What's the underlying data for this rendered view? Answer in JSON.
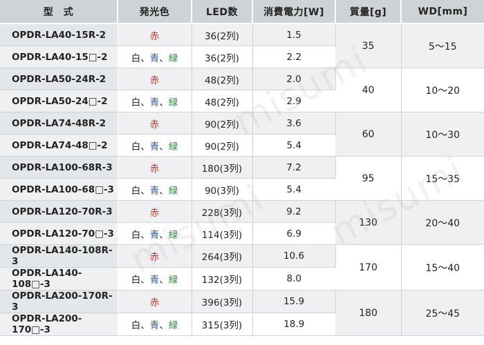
{
  "headers": {
    "model": "型　式",
    "color": "発光色",
    "led": "LED数",
    "power": "消費電力[W]",
    "mass": "質量[g]",
    "wd": "WD[mm]"
  },
  "colors": {
    "red": "赤",
    "white": "白",
    "blue": "青",
    "green": "緑",
    "sep": "、"
  },
  "groups": [
    {
      "mass": "35",
      "wd": "5～15",
      "rows": [
        {
          "model": "OPDR-LA40-15R-2",
          "type": "red",
          "led": "36(2列)",
          "power": "1.5"
        },
        {
          "model": "OPDR-LA40-15□-2",
          "type": "multi",
          "led": "36(2列)",
          "power": "2.2"
        }
      ]
    },
    {
      "mass": "40",
      "wd": "10～20",
      "rows": [
        {
          "model": "OPDR-LA50-24R-2",
          "type": "red",
          "led": "48(2列)",
          "power": "2.0"
        },
        {
          "model": "OPDR-LA50-24□-2",
          "type": "multi",
          "led": "48(2列)",
          "power": "2.9"
        }
      ]
    },
    {
      "mass": "60",
      "wd": "10～30",
      "rows": [
        {
          "model": "OPDR-LA74-48R-2",
          "type": "red",
          "led": "90(2列)",
          "power": "3.6"
        },
        {
          "model": "OPDR-LA74-48□-2",
          "type": "multi",
          "led": "90(2列)",
          "power": "5.4"
        }
      ]
    },
    {
      "mass": "95",
      "wd": "15～35",
      "rows": [
        {
          "model": "OPDR-LA100-68R-3",
          "type": "red",
          "led": "180(3列)",
          "power": "7.2"
        },
        {
          "model": "OPDR-LA100-68□-3",
          "type": "multi",
          "led": "90(3列)",
          "power": "5.4"
        }
      ]
    },
    {
      "mass": "130",
      "wd": "20～40",
      "rows": [
        {
          "model": "OPDR-LA120-70R-3",
          "type": "red",
          "led": "228(3列)",
          "power": "9.2"
        },
        {
          "model": "OPDR-LA120-70□-3",
          "type": "multi",
          "led": "114(3列)",
          "power": "6.9"
        }
      ]
    },
    {
      "mass": "170",
      "wd": "15～40",
      "rows": [
        {
          "model": "OPDR-LA140-108R-3",
          "type": "red",
          "led": "264(3列)",
          "power": "10.6"
        },
        {
          "model": "OPDR-LA140-108□-3",
          "type": "multi",
          "led": "132(3列)",
          "power": "8.0"
        }
      ]
    },
    {
      "mass": "180",
      "wd": "25～45",
      "rows": [
        {
          "model": "OPDR-LA200-170R-3",
          "type": "red",
          "led": "396(3列)",
          "power": "15.9"
        },
        {
          "model": "OPDR-LA200-170□-3",
          "type": "multi",
          "led": "315(3列)",
          "power": "18.9"
        }
      ]
    }
  ],
  "watermark": "misumi"
}
